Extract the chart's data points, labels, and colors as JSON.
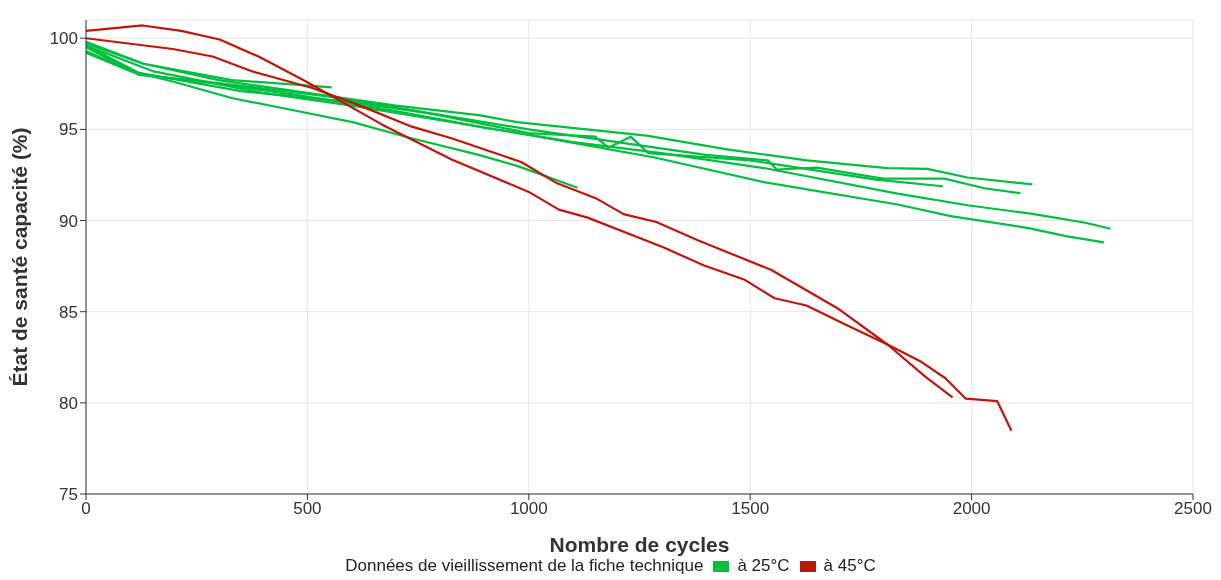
{
  "chart_data": {
    "type": "line",
    "xlabel": "Nombre de cycles",
    "ylabel": "État de santé capacité (%)",
    "legend_title": "Données de vieillissement de la fiche technique",
    "xlim": [
      0,
      2500
    ],
    "xticks": [
      0,
      500,
      1000,
      1500,
      2000,
      2500
    ],
    "ylim": [
      75,
      101
    ],
    "yticks": [
      75,
      80,
      85,
      90,
      95,
      100
    ],
    "grid": true,
    "legend": "bottom",
    "marker": "none",
    "line_style": "solid",
    "series": [
      {
        "name": "à 25°C",
        "color": "#00bf40",
        "x": [
          0,
          130,
          300,
          500,
          700,
          887,
          973,
          1266,
          1448,
          1628,
          1810,
          1900,
          1991,
          2137
        ],
        "values": [
          99.7,
          98.6,
          97.7,
          97.0,
          96.3,
          95.78,
          95.4,
          94.66,
          93.9,
          93.3,
          92.87,
          92.83,
          92.36,
          91.98
        ]
      },
      {
        "color": "#00bf40",
        "x": [
          0,
          120,
          350,
          600,
          800,
          1000,
          1200,
          1400,
          1540,
          1560,
          1650,
          1800,
          1939,
          2029,
          2110
        ],
        "values": [
          99.6,
          98.1,
          97.1,
          96.5,
          95.8,
          95.0,
          94.3,
          93.6,
          93.3,
          92.8,
          92.9,
          92.3,
          92.3,
          91.77,
          91.5
        ]
      },
      {
        "color": "#00bf40",
        "x": [
          0,
          120,
          280,
          550,
          750,
          1000,
          1150,
          1180,
          1230,
          1270,
          1500,
          1784,
          1935
        ],
        "values": [
          99.5,
          98.0,
          97.6,
          96.8,
          96.0,
          94.8,
          94.6,
          94.0,
          94.6,
          93.7,
          93.3,
          92.24,
          91.88
        ]
      },
      {
        "color": "#00bf40",
        "x": [
          0,
          120,
          300,
          500,
          700,
          900,
          1100,
          1300,
          1534,
          1833,
          1991,
          2141,
          2257,
          2314
        ],
        "values": [
          99.3,
          98.0,
          97.5,
          96.8,
          96.0,
          95.1,
          94.3,
          93.7,
          92.87,
          91.48,
          90.84,
          90.35,
          89.88,
          89.55
        ]
      },
      {
        "color": "#00bf40",
        "x": [
          0,
          150,
          400,
          600,
          800,
          1000,
          1284,
          1534,
          1833,
          1953,
          2126,
          2216,
          2299
        ],
        "values": [
          99.6,
          98.2,
          97.0,
          96.3,
          95.5,
          94.7,
          93.46,
          92.09,
          90.88,
          90.24,
          89.6,
          89.13,
          88.8
        ]
      },
      {
        "color": "#00bf40",
        "x": [
          0,
          100,
          200,
          331,
          505,
          602,
          737,
          887,
          977,
          1110
        ],
        "values": [
          99.2,
          98.2,
          97.6,
          96.71,
          95.87,
          95.4,
          94.5,
          93.6,
          92.97,
          91.8
        ]
      },
      {
        "color": "#00bf40",
        "x": [
          0,
          130,
          330,
          450,
          555
        ],
        "values": [
          99.8,
          98.6,
          97.7,
          97.5,
          97.3
        ]
      },
      {
        "name": "à 45°C",
        "color": "#c0150a",
        "x": [
          0,
          128,
          215,
          302,
          392,
          497,
          669,
          827,
          1000,
          1068,
          1133,
          1305,
          1396,
          1486,
          1555,
          1627,
          1715,
          1810,
          1883,
          1941,
          1987,
          2058,
          2090
        ],
        "values": [
          100.4,
          100.7,
          100.4,
          99.93,
          98.97,
          97.63,
          95.26,
          93.34,
          91.57,
          90.6,
          90.16,
          88.52,
          87.53,
          86.77,
          85.74,
          85.34,
          84.3,
          83.2,
          82.3,
          81.35,
          80.23,
          80.09,
          78.47
        ]
      },
      {
        "color": "#c0150a",
        "x": [
          0,
          196,
          286,
          376,
          511,
          609,
          736,
          827,
          984,
          1064,
          1154,
          1214,
          1288,
          1383,
          1547,
          1697,
          1810,
          1896,
          1957
        ],
        "values": [
          100.0,
          99.41,
          99.0,
          98.18,
          97.27,
          96.4,
          95.15,
          94.5,
          93.2,
          92.04,
          91.19,
          90.35,
          89.92,
          88.9,
          87.3,
          85.19,
          83.2,
          81.42,
          80.3
        ]
      }
    ]
  }
}
